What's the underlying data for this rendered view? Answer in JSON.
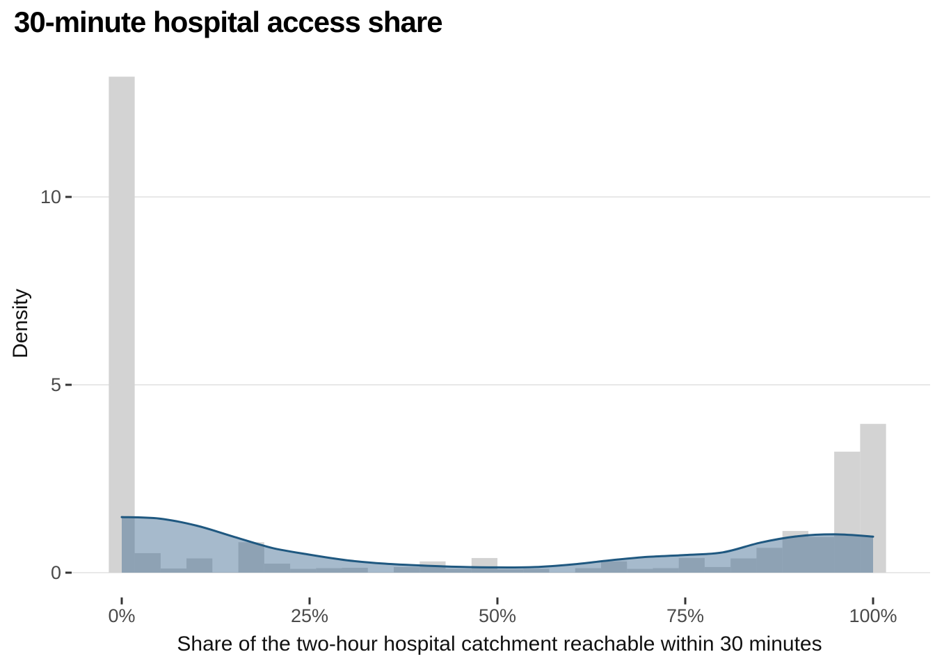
{
  "chart_data": {
    "type": "bar",
    "subtype": "histogram-with-density-overlay",
    "title": "30-minute hospital access share",
    "xlabel": "Share of the two-hour hospital catchment reachable within 30 minutes",
    "ylabel": "Density",
    "legend": "none",
    "grid": "horizontal-major-only",
    "xlim_pct": [
      -6.7,
      107.6
    ],
    "ylim": [
      -0.65,
      13.9
    ],
    "xticks": [
      {
        "pct": 0,
        "label": "0%"
      },
      {
        "pct": 25,
        "label": "25%"
      },
      {
        "pct": 50,
        "label": "50%"
      },
      {
        "pct": 75,
        "label": "75%"
      },
      {
        "pct": 100,
        "label": "100%"
      }
    ],
    "yticks": [
      {
        "value": 0,
        "label": "0"
      },
      {
        "value": 5,
        "label": "5"
      },
      {
        "value": 10,
        "label": "10"
      }
    ],
    "histogram": {
      "bin_width_pct": 3.448,
      "bars": [
        {
          "center_pct": 0.0,
          "density": 13.2
        },
        {
          "center_pct": 3.45,
          "density": 0.52
        },
        {
          "center_pct": 6.9,
          "density": 0.11
        },
        {
          "center_pct": 10.34,
          "density": 0.38
        },
        {
          "center_pct": 13.79,
          "density": 0
        },
        {
          "center_pct": 17.24,
          "density": 0.81
        },
        {
          "center_pct": 20.69,
          "density": 0.24
        },
        {
          "center_pct": 24.14,
          "density": 0.1
        },
        {
          "center_pct": 27.59,
          "density": 0.12
        },
        {
          "center_pct": 31.03,
          "density": 0.13
        },
        {
          "center_pct": 34.48,
          "density": 0
        },
        {
          "center_pct": 37.93,
          "density": 0.15
        },
        {
          "center_pct": 41.38,
          "density": 0.3
        },
        {
          "center_pct": 44.83,
          "density": 0.1
        },
        {
          "center_pct": 48.28,
          "density": 0.39
        },
        {
          "center_pct": 51.72,
          "density": 0.09
        },
        {
          "center_pct": 55.17,
          "density": 0.1
        },
        {
          "center_pct": 58.62,
          "density": 0
        },
        {
          "center_pct": 62.07,
          "density": 0.12
        },
        {
          "center_pct": 65.52,
          "density": 0.3
        },
        {
          "center_pct": 68.97,
          "density": 0.1
        },
        {
          "center_pct": 72.41,
          "density": 0.12
        },
        {
          "center_pct": 75.86,
          "density": 0.39
        },
        {
          "center_pct": 79.31,
          "density": 0.15
        },
        {
          "center_pct": 82.76,
          "density": 0.38
        },
        {
          "center_pct": 86.21,
          "density": 0.66
        },
        {
          "center_pct": 89.66,
          "density": 1.11
        },
        {
          "center_pct": 93.1,
          "density": 0.95
        },
        {
          "center_pct": 96.55,
          "density": 3.22
        },
        {
          "center_pct": 100.0,
          "density": 3.96
        }
      ]
    },
    "density_curve": [
      {
        "pct": 0,
        "density": 1.48
      },
      {
        "pct": 5,
        "density": 1.44
      },
      {
        "pct": 10,
        "density": 1.25
      },
      {
        "pct": 15,
        "density": 0.95
      },
      {
        "pct": 20,
        "density": 0.66
      },
      {
        "pct": 25,
        "density": 0.48
      },
      {
        "pct": 30,
        "density": 0.33
      },
      {
        "pct": 35,
        "density": 0.24
      },
      {
        "pct": 40,
        "density": 0.19
      },
      {
        "pct": 45,
        "density": 0.155
      },
      {
        "pct": 50,
        "density": 0.14
      },
      {
        "pct": 55,
        "density": 0.15
      },
      {
        "pct": 60,
        "density": 0.22
      },
      {
        "pct": 65,
        "density": 0.33
      },
      {
        "pct": 70,
        "density": 0.42
      },
      {
        "pct": 75,
        "density": 0.47
      },
      {
        "pct": 80,
        "density": 0.54
      },
      {
        "pct": 85,
        "density": 0.8
      },
      {
        "pct": 90,
        "density": 0.97
      },
      {
        "pct": 95,
        "density": 1.02
      },
      {
        "pct": 100,
        "density": 0.96
      }
    ],
    "colors": {
      "bar": "#d3d3d3",
      "density_fill": "#3a678f",
      "density_fill_opacity": 0.45,
      "density_line": "#1f5880",
      "gridline": "#e1e1e1",
      "tick_mark": "#333333",
      "tick_label": "#4a4a4a",
      "axis_title": "#111111",
      "title": "#000000",
      "background": "#ffffff"
    }
  }
}
